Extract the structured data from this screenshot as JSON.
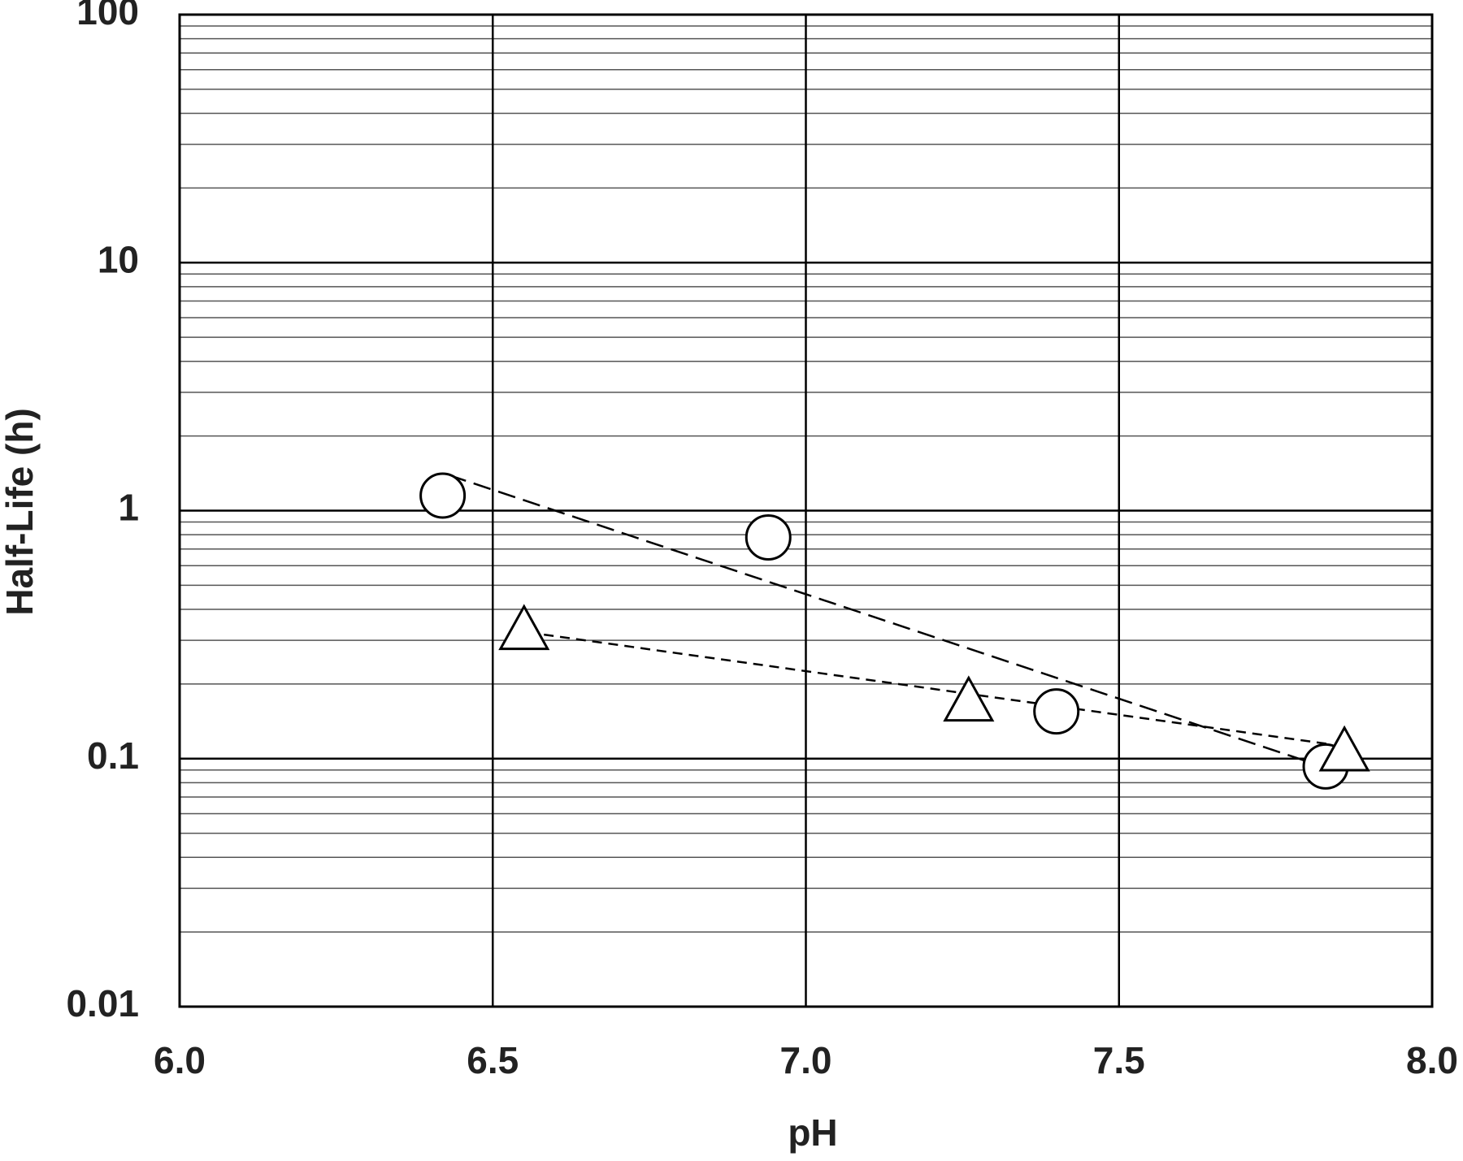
{
  "chart_data": {
    "type": "scatter",
    "x_label": "pH",
    "y_label": "Half-Life (h)",
    "xlim": [
      6,
      8
    ],
    "xticks": [
      {
        "value": 6,
        "label": "6.0"
      },
      {
        "value": 6.5,
        "label": "6.5"
      },
      {
        "value": 7,
        "label": "7.0"
      },
      {
        "value": 7.5,
        "label": "7.5"
      },
      {
        "value": 8,
        "label": "8.0"
      }
    ],
    "ylim": [
      0.01,
      100
    ],
    "yticks": [
      0.01,
      0.1,
      1,
      10,
      100
    ],
    "y_log": true,
    "grid": true,
    "minor_grid": true,
    "series": [
      {
        "marker": "circle",
        "color": "#000000",
        "x": [
          6.42,
          6.94,
          7.4,
          7.83
        ],
        "values": [
          1.15,
          0.78,
          0.155,
          0.093
        ]
      },
      {
        "marker": "triangle",
        "color": "#000000",
        "x": [
          6.55,
          7.26,
          7.86
        ],
        "values": [
          0.33,
          0.17,
          0.107
        ]
      },
      {
        "marker": "long-dash-line",
        "color": "#000000",
        "x": [
          6.43,
          7.83
        ],
        "values": [
          1.39,
          0.092
        ]
      },
      {
        "marker": "short-dash-line",
        "color": "#000000",
        "x": [
          6.556,
          7.84
        ],
        "values": [
          0.323,
          0.114
        ]
      }
    ]
  }
}
